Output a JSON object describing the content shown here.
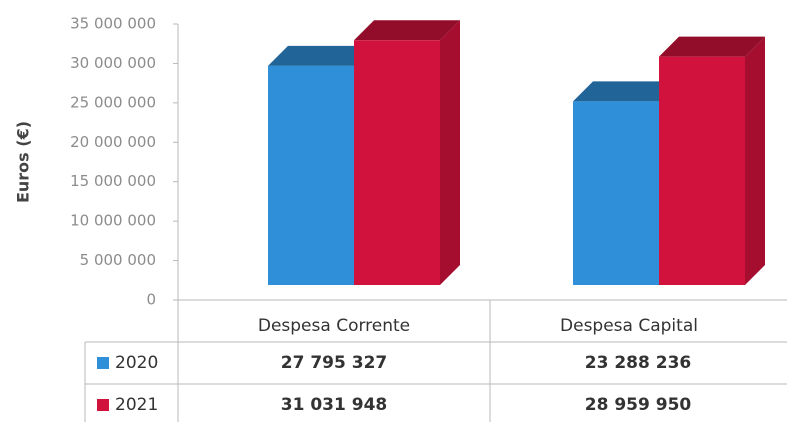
{
  "chart_data": {
    "type": "bar3d",
    "y_label": "Euros (€)",
    "categories": [
      "Despesa Corrente",
      "Despesa Capital"
    ],
    "series": [
      {
        "name": "2020",
        "color": "#2f8fd9",
        "values": [
          27795327,
          23288236
        ],
        "value_labels": [
          "27 795 327",
          "23 288 236"
        ]
      },
      {
        "name": "2021",
        "color": "#d0123c",
        "values": [
          31031948,
          28959950
        ],
        "value_labels": [
          "31 031 948",
          "28 959 950"
        ]
      }
    ],
    "ylim": [
      0,
      35000000
    ],
    "yticks": [
      0,
      {
        "value": 5000000,
        "label": "5 000 000"
      },
      {
        "value": 10000000,
        "label": "10 000 000"
      },
      {
        "value": 15000000,
        "label": "15 000 000"
      },
      {
        "value": 20000000,
        "label": "20 000 000"
      },
      {
        "value": 25000000,
        "label": "25 000 000"
      },
      {
        "value": 30000000,
        "label": "30 000 000"
      },
      {
        "value": 35000000,
        "label": "35 000 000"
      }
    ]
  }
}
